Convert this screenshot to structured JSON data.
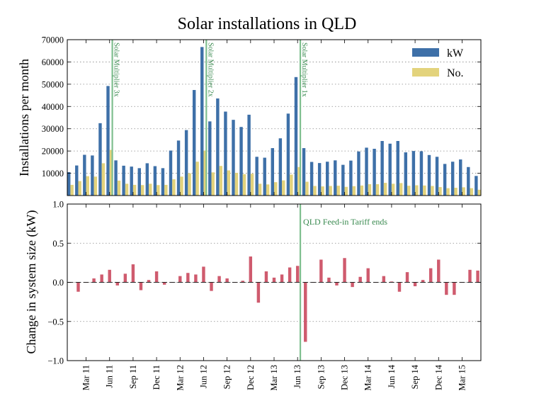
{
  "colors": {
    "kw": "#3e70a8",
    "no": "#e3d37c",
    "change": "#cf5b6e",
    "marker": "#7fbf8f"
  },
  "chart_data": [
    {
      "type": "bar",
      "title": "Solar installations in QLD",
      "ylabel": "Installations per month",
      "ylim": [
        0,
        70000
      ],
      "yticks": [
        "10000",
        "20000",
        "30000",
        "40000",
        "50000",
        "60000",
        "70000"
      ],
      "ytick_values": [
        10000,
        20000,
        30000,
        40000,
        50000,
        60000,
        70000
      ],
      "grid": true,
      "legend_position": "top-right",
      "series": [
        {
          "name": "kW",
          "values": [
            10500,
            13500,
            18300,
            18000,
            32500,
            49200,
            15800,
            13400,
            13000,
            12300,
            14500,
            13200,
            12300,
            20200,
            24700,
            29400,
            47400,
            66700,
            33300,
            43600,
            37700,
            34000,
            30800,
            36300,
            17400,
            17000,
            21300,
            25700,
            36800,
            53200,
            21300,
            15100,
            14600,
            15200,
            15800,
            13800,
            15700,
            19800,
            21500,
            21000,
            24500,
            23300,
            24500,
            19400,
            20000,
            19900,
            18200,
            17400,
            14200,
            15200,
            16200,
            12800,
            8800
          ]
        },
        {
          "name": "No.",
          "values": [
            4800,
            6500,
            8700,
            8500,
            14500,
            20500,
            6700,
            5300,
            4800,
            4700,
            5300,
            4700,
            4800,
            7300,
            8500,
            10000,
            15200,
            20200,
            10400,
            13300,
            11300,
            10200,
            9600,
            9800,
            5300,
            5000,
            6000,
            6800,
            9400,
            12800,
            6200,
            4300,
            4100,
            4300,
            4400,
            3900,
            4200,
            4500,
            5100,
            5100,
            5700,
            5300,
            5600,
            4400,
            4600,
            4500,
            4300,
            3800,
            3300,
            3500,
            3700,
            3300,
            2600
          ]
        }
      ],
      "annotations": [
        {
          "text": "Solar Multiplier 3x",
          "x_index": 5.75
        },
        {
          "text": "Solar Multiplier 2x",
          "x_index": 17.75
        },
        {
          "text": "Solar Multiplier 1x",
          "x_index": 29.75
        }
      ]
    },
    {
      "type": "bar",
      "ylabel": "Change in system size (kW)",
      "ylim": [
        -1.0,
        1.0
      ],
      "yticks": [
        "1.0",
        "0.5",
        "0.0",
        "−0.5",
        "−1.0"
      ],
      "ytick_values": [
        1.0,
        0.5,
        0.0,
        -0.5,
        -1.0
      ],
      "grid": true,
      "values": [
        0,
        -0.12,
        0.0,
        0.05,
        0.1,
        0.16,
        -0.04,
        0.11,
        0.23,
        -0.1,
        0.03,
        0.14,
        -0.03,
        0.0,
        0.08,
        0.12,
        0.1,
        0.2,
        -0.11,
        0.08,
        0.05,
        0.0,
        0.02,
        0.33,
        -0.26,
        0.14,
        0.06,
        0.1,
        0.19,
        0.21,
        -0.76,
        0.0,
        0.29,
        0.06,
        -0.04,
        0.31,
        -0.06,
        0.07,
        0.18,
        0.0,
        0.08,
        0.01,
        -0.12,
        0.13,
        -0.05,
        0.03,
        0.18,
        0.29,
        -0.16,
        -0.16,
        0.0,
        0.16,
        0.15
      ],
      "annotations": [
        {
          "text": "QLD Feed-in Tariff ends",
          "x_index": 29.75
        }
      ]
    }
  ],
  "x_axis": {
    "tick_labels": [
      "Mar 11",
      "Jun 11",
      "Sep 11",
      "Dec 11",
      "Mar 12",
      "Jun 12",
      "Sep 12",
      "Dec 12",
      "Mar 13",
      "Jun 13",
      "Sep 13",
      "Dec 13",
      "Mar 14",
      "Jun 14",
      "Sep 14",
      "Dec 14",
      "Mar 15"
    ],
    "tick_indices": [
      2,
      5,
      8,
      11,
      14,
      17,
      20,
      23,
      26,
      29,
      32,
      35,
      38,
      41,
      44,
      47,
      50
    ]
  }
}
